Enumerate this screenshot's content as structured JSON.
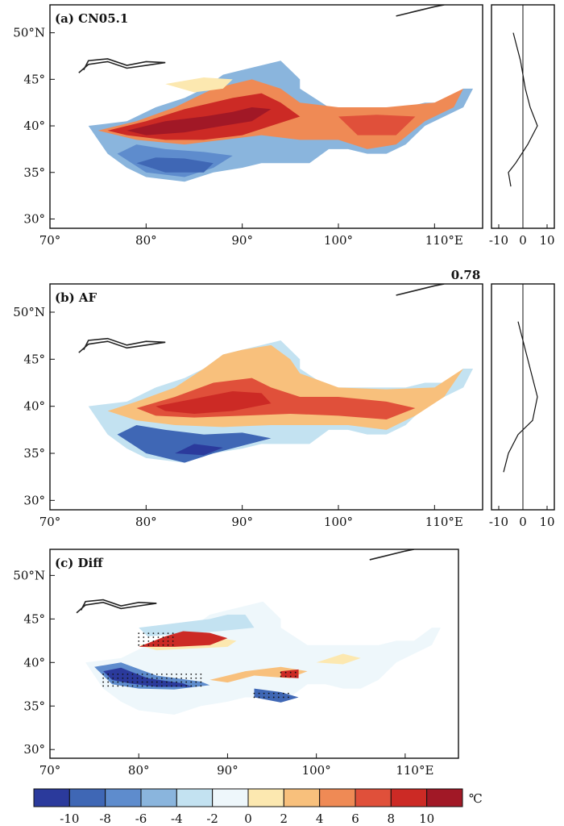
{
  "chart_data": [
    {
      "type": "heatmap",
      "title": "(a) CN05.1",
      "xlim": [
        70,
        115
      ],
      "ylim": [
        29,
        53
      ],
      "x_ticks": [
        "70°",
        "80°",
        "90°",
        "100°",
        "110°E"
      ],
      "y_ticks": [
        "30°",
        "35°",
        "40°",
        "45°",
        "50°N"
      ],
      "side_profile": {
        "type": "line",
        "x_ticks": [
          "-10",
          "0",
          "10"
        ],
        "xlim": [
          -13,
          13
        ],
        "points": [
          [
            -4,
            50
          ],
          [
            -1,
            47
          ],
          [
            1,
            44
          ],
          [
            3,
            42
          ],
          [
            6,
            40
          ],
          [
            2,
            38
          ],
          [
            -3,
            36
          ],
          [
            -6,
            35
          ],
          [
            -5,
            33.5
          ]
        ]
      }
    },
    {
      "type": "heatmap",
      "title": "(b) AF",
      "annotation": "0.78",
      "xlim": [
        70,
        115
      ],
      "ylim": [
        29,
        53
      ],
      "x_ticks": [
        "70°",
        "80°",
        "90°",
        "100°",
        "110°E"
      ],
      "y_ticks": [
        "30°",
        "35°",
        "40°",
        "45°",
        "50°N"
      ],
      "side_profile": {
        "type": "line",
        "x_ticks": [
          "-10",
          "0",
          "10"
        ],
        "xlim": [
          -13,
          13
        ],
        "points": [
          [
            -2,
            49
          ],
          [
            0,
            47
          ],
          [
            3,
            44
          ],
          [
            6,
            41
          ],
          [
            4,
            38.5
          ],
          [
            -2,
            37
          ],
          [
            -6,
            35
          ],
          [
            -8,
            33
          ]
        ]
      }
    },
    {
      "type": "heatmap",
      "title": "(c) Diff",
      "xlim": [
        70,
        116
      ],
      "ylim": [
        29,
        53
      ],
      "x_ticks": [
        "70°",
        "80°",
        "90°",
        "100°",
        "110°E"
      ],
      "y_ticks": [
        "30°",
        "35°",
        "40°",
        "45°",
        "50°N"
      ],
      "stippling": "significant areas"
    }
  ],
  "colorbar": {
    "tick_labels": [
      "-10",
      "-8",
      "-6",
      "-4",
      "-2",
      "0",
      "2",
      "4",
      "6",
      "8",
      "10"
    ],
    "unit": "℃",
    "colors": [
      "#2b3a9c",
      "#3f67b5",
      "#5e8ccd",
      "#8ab5dd",
      "#c3e2f1",
      "#eef7fb",
      "#fce8b0",
      "#f8c07c",
      "#ef8a55",
      "#e0503a",
      "#cc2a25",
      "#a11826"
    ]
  }
}
